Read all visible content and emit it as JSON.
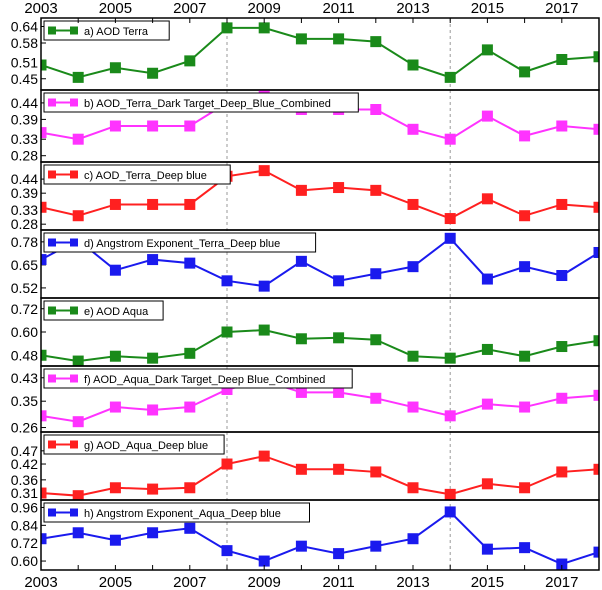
{
  "chart_data": {
    "type": "line",
    "x": [
      2003,
      2004,
      2005,
      2006,
      2007,
      2008,
      2009,
      2010,
      2011,
      2012,
      2013,
      2014,
      2015,
      2016,
      2017,
      2018
    ],
    "x_tick_labels": [
      "2003",
      "2005",
      "2007",
      "2009",
      "2011",
      "2013",
      "2015",
      "2017"
    ],
    "xlim": [
      2003,
      2018
    ],
    "reference_lines_x": [
      2008,
      2014
    ],
    "panels": [
      {
        "label": "a) AOD Terra",
        "color": "#1a8a1a",
        "ylim": [
          0.42,
          0.66
        ],
        "yticks": [
          "0.64",
          "0.58",
          "0.51",
          "0.45"
        ],
        "values": [
          0.5,
          0.455,
          0.49,
          0.47,
          0.515,
          0.635,
          0.635,
          0.595,
          0.595,
          0.585,
          0.5,
          0.455,
          0.555,
          0.475,
          0.52,
          0.53
        ]
      },
      {
        "label": "b) AOD_Terra_Dark Target_Deep_Blue_Combined",
        "color": "#ff33ff",
        "ylim": [
          0.27,
          0.47
        ],
        "yticks": [
          "0.44",
          "0.39",
          "0.33",
          "0.28"
        ],
        "values": [
          0.35,
          0.33,
          0.37,
          0.37,
          0.37,
          0.44,
          0.47,
          0.42,
          0.42,
          0.42,
          0.36,
          0.33,
          0.4,
          0.34,
          0.37,
          0.36
        ]
      },
      {
        "label": "c) AOD_Terra_Deep blue",
        "color": "#ff2020",
        "ylim": [
          0.27,
          0.49
        ],
        "yticks": [
          "0.44",
          "0.39",
          "0.33",
          "0.28"
        ],
        "values": [
          0.34,
          0.31,
          0.35,
          0.35,
          0.35,
          0.45,
          0.47,
          0.4,
          0.41,
          0.4,
          0.35,
          0.3,
          0.37,
          0.31,
          0.35,
          0.34
        ]
      },
      {
        "label": "d) Angstrom Exponent_Terra_Deep blue",
        "color": "#1a1aee",
        "ylim": [
          0.48,
          0.83
        ],
        "yticks": [
          "0.78",
          "0.65",
          "0.52"
        ],
        "values": [
          0.68,
          0.79,
          0.62,
          0.68,
          0.66,
          0.56,
          0.53,
          0.67,
          0.56,
          0.6,
          0.64,
          0.8,
          0.57,
          0.64,
          0.59,
          0.72
        ]
      },
      {
        "label": "e) AOD Aqua",
        "color": "#1a8a1a",
        "ylim": [
          0.44,
          0.76
        ],
        "yticks": [
          "0.72",
          "0.60",
          "0.48"
        ],
        "values": [
          0.48,
          0.45,
          0.475,
          0.465,
          0.49,
          0.6,
          0.61,
          0.565,
          0.57,
          0.56,
          0.475,
          0.465,
          0.51,
          0.475,
          0.525,
          0.555
        ]
      },
      {
        "label": "f) AOD_Aqua_Dark Target_Deep Blue_Combined",
        "color": "#ff33ff",
        "ylim": [
          0.255,
          0.46
        ],
        "yticks": [
          "0.43",
          "0.35",
          "0.26"
        ],
        "values": [
          0.3,
          0.28,
          0.33,
          0.32,
          0.33,
          0.39,
          0.42,
          0.38,
          0.38,
          0.36,
          0.33,
          0.3,
          0.34,
          0.33,
          0.36,
          0.37
        ]
      },
      {
        "label": "g) AOD_Aqua_Deep blue",
        "color": "#ff2020",
        "ylim": [
          0.295,
          0.53
        ],
        "yticks": [
          "0.47",
          "0.42",
          "0.36",
          "0.31"
        ],
        "values": [
          0.31,
          0.3,
          0.33,
          0.325,
          0.33,
          0.42,
          0.45,
          0.4,
          0.4,
          0.39,
          0.33,
          0.305,
          0.345,
          0.33,
          0.39,
          0.4
        ]
      },
      {
        "label": "h) Angstrom Exponent_Aqua_Deep blue",
        "color": "#1a1aee",
        "ylim": [
          0.56,
          0.99
        ],
        "yticks": [
          "0.96",
          "0.84",
          "0.72",
          "0.60"
        ],
        "values": [
          0.75,
          0.79,
          0.74,
          0.79,
          0.82,
          0.67,
          0.6,
          0.7,
          0.65,
          0.7,
          0.75,
          0.93,
          0.68,
          0.69,
          0.58,
          0.66
        ]
      }
    ]
  }
}
